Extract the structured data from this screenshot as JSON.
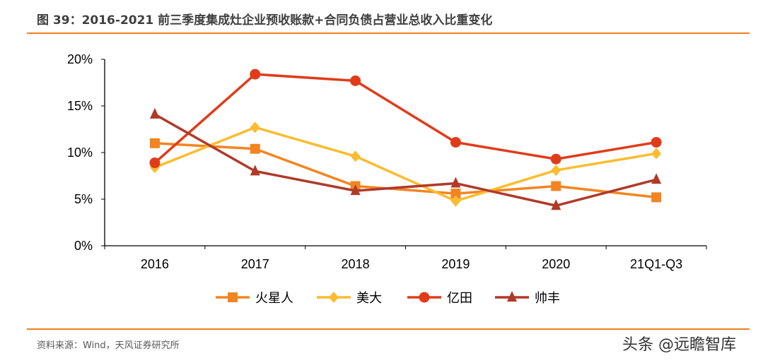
{
  "title": "图 39：2016-2021 前三季度集成灶企业预收账款+合同负债占营业总收入比重变化",
  "source": "资料来源：Wind，天风证券研究所",
  "watermark": "头条 @远瞻智库",
  "chart_data": {
    "type": "line",
    "categories": [
      "2016",
      "2017",
      "2018",
      "2019",
      "2020",
      "21Q1-Q3"
    ],
    "ylim": [
      0,
      20
    ],
    "yticks": [
      "0%",
      "5%",
      "10%",
      "15%",
      "20%"
    ],
    "ytick_values": [
      0,
      5,
      10,
      15,
      20
    ],
    "grid": false,
    "legend_position": "bottom",
    "series": [
      {
        "name": "火星人",
        "color": "#F28522",
        "marker": "square",
        "values": [
          11.0,
          10.4,
          6.4,
          5.6,
          6.4,
          5.2
        ]
      },
      {
        "name": "美大",
        "color": "#FBBC2F",
        "marker": "diamond",
        "values": [
          8.4,
          12.7,
          9.6,
          4.8,
          8.1,
          9.9
        ]
      },
      {
        "name": "亿田",
        "color": "#E03C1A",
        "marker": "circle",
        "values": [
          8.9,
          18.4,
          17.7,
          11.1,
          9.3,
          11.1
        ]
      },
      {
        "name": "帅丰",
        "color": "#B03A28",
        "marker": "triangle",
        "values": [
          14.1,
          8.0,
          5.9,
          6.7,
          4.3,
          7.1
        ]
      }
    ]
  }
}
